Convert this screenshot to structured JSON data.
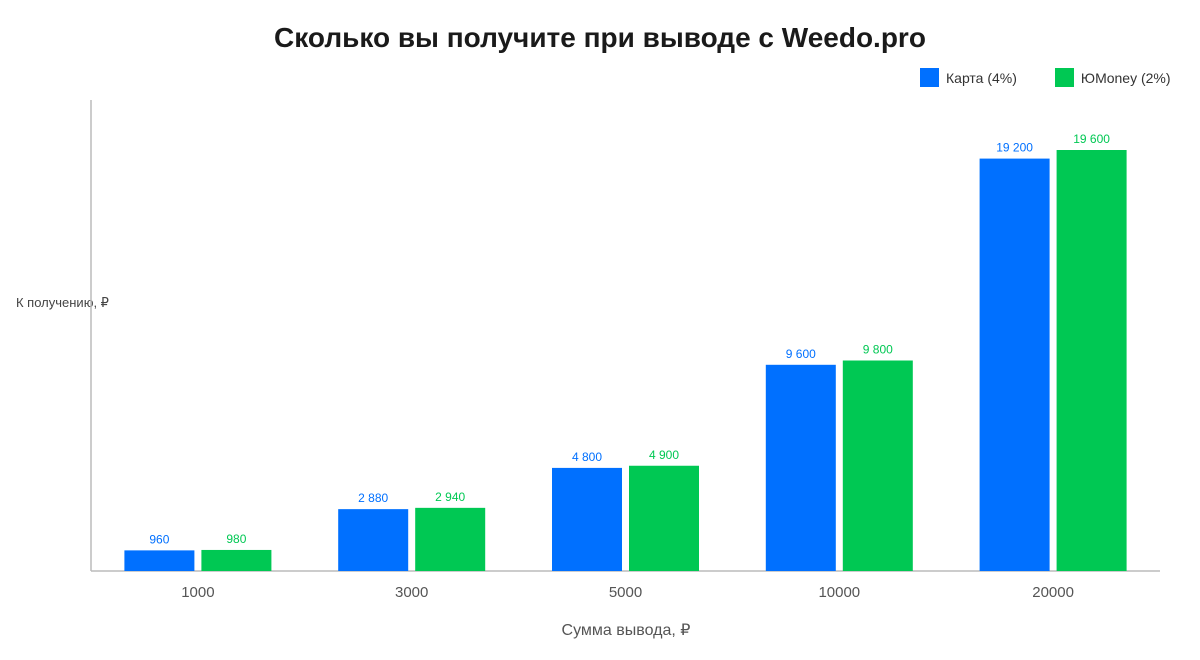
{
  "chart_data": {
    "type": "bar",
    "title": "Сколько вы получите при выводе с Weedo.pro",
    "xlabel": "Сумма вывода, ₽",
    "ylabel": "К получению, ₽",
    "categories": [
      "1000",
      "3000",
      "5000",
      "10000",
      "20000"
    ],
    "series": [
      {
        "name": "Карта (4%)",
        "color": "#0070FF",
        "values": [
          960,
          2880,
          4800,
          9600,
          19200
        ],
        "labels": [
          "960",
          "2 880",
          "4 800",
          "9 600",
          "19 200"
        ]
      },
      {
        "name": "ЮMoney (2%)",
        "color": "#00C853",
        "values": [
          980,
          2940,
          4900,
          9800,
          19600
        ],
        "labels": [
          "980",
          "2 940",
          "4 900",
          "9 800",
          "19 600"
        ]
      }
    ],
    "ylim": [
      0,
      20000
    ],
    "grid": false,
    "legend": "top-right"
  }
}
